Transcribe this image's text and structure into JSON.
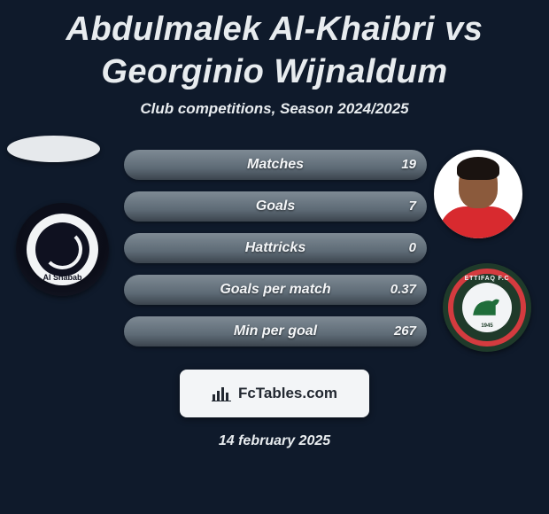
{
  "title": "Abdulmalek Al-Khaibri vs Georginio Wijnaldum",
  "subtitle": "Club competitions, Season 2024/2025",
  "date": "14 february 2025",
  "brand": "FcTables.com",
  "left_club_short": "Al Shabab",
  "right_club_top": "ETTIFAQ F.C",
  "right_club_year": "1945",
  "bar_colors": {
    "left_bg": "#5e6b76",
    "right_fill": "#7e8a94",
    "shadow": "#3b444d"
  },
  "background_color": "#0f1a2b",
  "stats": [
    {
      "label": "Matches",
      "right_value": "19",
      "right_width_pct": 100
    },
    {
      "label": "Goals",
      "right_value": "7",
      "right_width_pct": 100
    },
    {
      "label": "Hattricks",
      "right_value": "0",
      "right_width_pct": 100
    },
    {
      "label": "Goals per match",
      "right_value": "0.37",
      "right_width_pct": 100
    },
    {
      "label": "Min per goal",
      "right_value": "267",
      "right_width_pct": 100
    }
  ]
}
